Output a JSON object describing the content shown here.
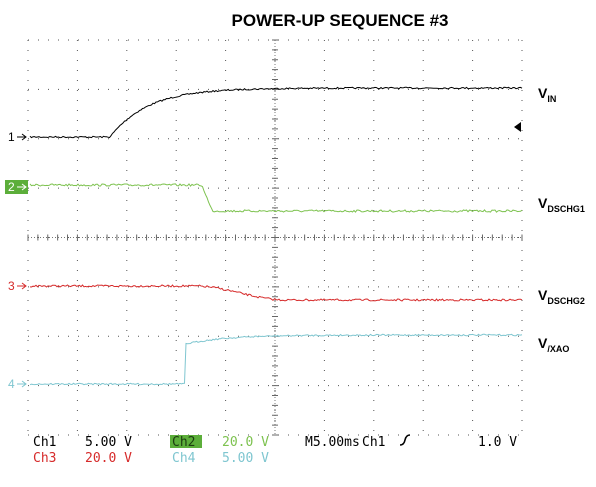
{
  "title": "POWER-UP SEQUENCE #3",
  "channel_markers": [
    "1",
    "2",
    "3",
    "4"
  ],
  "signals": [
    {
      "main": "V",
      "sub": "IN"
    },
    {
      "main": "V",
      "sub": "DSCHG1"
    },
    {
      "main": "V",
      "sub": "DSCHG2"
    },
    {
      "main": "V",
      "sub": "/XAO"
    }
  ],
  "readout": {
    "row1": [
      "Ch1",
      "5.00 V",
      "Ch2",
      "20.0 V",
      "M5.00ms",
      "Ch1",
      "1.0 V"
    ],
    "row2": [
      "Ch3",
      "20.0 V",
      "Ch4",
      "5.00 V"
    ]
  }
}
